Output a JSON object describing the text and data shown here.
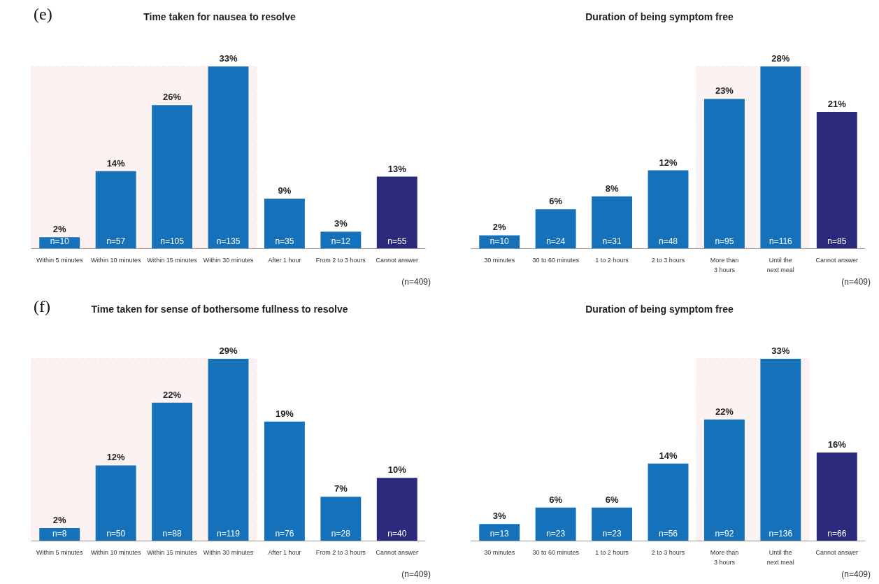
{
  "chart_data": [
    {
      "type": "bar",
      "title": "Time taken for nausea to resolve",
      "categories": [
        "Within 5 minutes",
        "Within 10 minutes",
        "Within 15 minutes",
        "Within 30 minutes",
        "After 1 hour",
        "From 2 to 3 hours",
        "Cannot answer"
      ],
      "values": [
        2,
        14,
        26,
        33,
        9,
        3,
        13
      ],
      "value_labels": [
        "2%",
        "14%",
        "26%",
        "33%",
        "9%",
        "3%",
        "13%"
      ],
      "colors": [
        "#1572ba",
        "#1572ba",
        "#1572ba",
        "#1572ba",
        "#1572ba",
        "#1572ba",
        "#2b2a7c"
      ],
      "bands": [
        {
          "axis": "x",
          "from": "Within 5 minutes",
          "to": "Within 30 minutes",
          "color": "#d9534f"
        }
      ],
      "annotations": [
        "(e)",
        "(n=409)",
        {
          "text": "n=10",
          "x": "Within 5 minutes",
          "y": 0
        },
        {
          "text": "n=57",
          "x": "Within 10 minutes",
          "y": 0
        },
        {
          "text": "n=105",
          "x": "Within 15 minutes",
          "y": 0
        },
        {
          "text": "n=135",
          "x": "Within 30 minutes",
          "y": 0
        },
        {
          "text": "n=35",
          "x": "After 1 hour",
          "y": 0
        },
        {
          "text": "n=12",
          "x": "From 2 to 3 hours",
          "y": 0
        },
        {
          "text": "n=55",
          "x": "Cannot answer",
          "y": 0
        }
      ]
    },
    {
      "type": "bar",
      "title": "Duration of being symptom free",
      "categories": [
        "30 minutes",
        "30 to 60 minutes",
        "1 to 2 hours",
        "2 to 3 hours",
        "More than\n3 hours",
        "Until the\nnext meal",
        "Cannot answer"
      ],
      "values": [
        2,
        6,
        8,
        12,
        23,
        28,
        21
      ],
      "value_labels": [
        "2%",
        "6%",
        "8%",
        "12%",
        "23%",
        "28%",
        "21%"
      ],
      "colors": [
        "#1572ba",
        "#1572ba",
        "#1572ba",
        "#1572ba",
        "#1572ba",
        "#1572ba",
        "#2b2a7c"
      ],
      "bands": [
        {
          "axis": "x",
          "from": "More than\n3 hours",
          "to": "Until the\nnext meal",
          "color": "#d9534f"
        }
      ],
      "annotations": [
        "(n=409)",
        {
          "text": "n=10",
          "x": "30 minutes",
          "y": 0
        },
        {
          "text": "n=24",
          "x": "30 to 60 minutes",
          "y": 0
        },
        {
          "text": "n=31",
          "x": "1 to 2 hours",
          "y": 0
        },
        {
          "text": "n=48",
          "x": "2 to 3 hours",
          "y": 0
        },
        {
          "text": "n=95",
          "x": "More than\n3 hours",
          "y": 0
        },
        {
          "text": "n=116",
          "x": "Until the\nnext meal",
          "y": 0
        },
        {
          "text": "n=85",
          "x": "Cannot answer",
          "y": 0
        }
      ]
    },
    {
      "type": "bar",
      "title": "Time taken for sense of bothersome fullness to resolve",
      "categories": [
        "Within 5 minutes",
        "Within 10 minutes",
        "Within 15 minutes",
        "Within 30 minutes",
        "After 1 hour",
        "From 2 to 3 hours",
        "Cannot answer"
      ],
      "values": [
        2,
        12,
        22,
        29,
        19,
        7,
        10
      ],
      "value_labels": [
        "2%",
        "12%",
        "22%",
        "29%",
        "19%",
        "7%",
        "10%"
      ],
      "colors": [
        "#1572ba",
        "#1572ba",
        "#1572ba",
        "#1572ba",
        "#1572ba",
        "#1572ba",
        "#2b2a7c"
      ],
      "bands": [
        {
          "axis": "x",
          "from": "Within 5 minutes",
          "to": "Within 30 minutes",
          "color": "#d9534f"
        }
      ],
      "annotations": [
        "(f)",
        "(n=409)",
        {
          "text": "n=8",
          "x": "Within 5 minutes",
          "y": 0
        },
        {
          "text": "n=50",
          "x": "Within 10 minutes",
          "y": 0
        },
        {
          "text": "n=88",
          "x": "Within 15 minutes",
          "y": 0
        },
        {
          "text": "n=119",
          "x": "Within 30 minutes",
          "y": 0
        },
        {
          "text": "n=76",
          "x": "After 1 hour",
          "y": 0
        },
        {
          "text": "n=28",
          "x": "From 2 to 3 hours",
          "y": 0
        },
        {
          "text": "n=40",
          "x": "Cannot answer",
          "y": 0
        }
      ]
    },
    {
      "type": "bar",
      "title": "Duration of being symptom free",
      "categories": [
        "30 minutes",
        "30 to 60 minutes",
        "1 to 2 hours",
        "2 to 3 hours",
        "More than\n3 hours",
        "Until the\nnext meal",
        "Cannot answer"
      ],
      "values": [
        3,
        6,
        6,
        14,
        22,
        33,
        16
      ],
      "value_labels": [
        "3%",
        "6%",
        "6%",
        "14%",
        "22%",
        "33%",
        "16%"
      ],
      "colors": [
        "#1572ba",
        "#1572ba",
        "#1572ba",
        "#1572ba",
        "#1572ba",
        "#1572ba",
        "#2b2a7c"
      ],
      "bands": [
        {
          "axis": "x",
          "from": "More than\n3 hours",
          "to": "Until the\nnext meal",
          "color": "#d9534f"
        }
      ],
      "annotations": [
        "(n=409)",
        {
          "text": "n=13",
          "x": "30 minutes",
          "y": 0
        },
        {
          "text": "n=23",
          "x": "30 to 60 minutes",
          "y": 0
        },
        {
          "text": "n=23",
          "x": "1 to 2 hours",
          "y": 0
        },
        {
          "text": "n=56",
          "x": "2 to 3 hours",
          "y": 0
        },
        {
          "text": "n=92",
          "x": "More than\n3 hours",
          "y": 0
        },
        {
          "text": "n=136",
          "x": "Until the\nnext meal",
          "y": 0
        },
        {
          "text": "n=66",
          "x": "Cannot answer",
          "y": 0
        }
      ]
    }
  ]
}
